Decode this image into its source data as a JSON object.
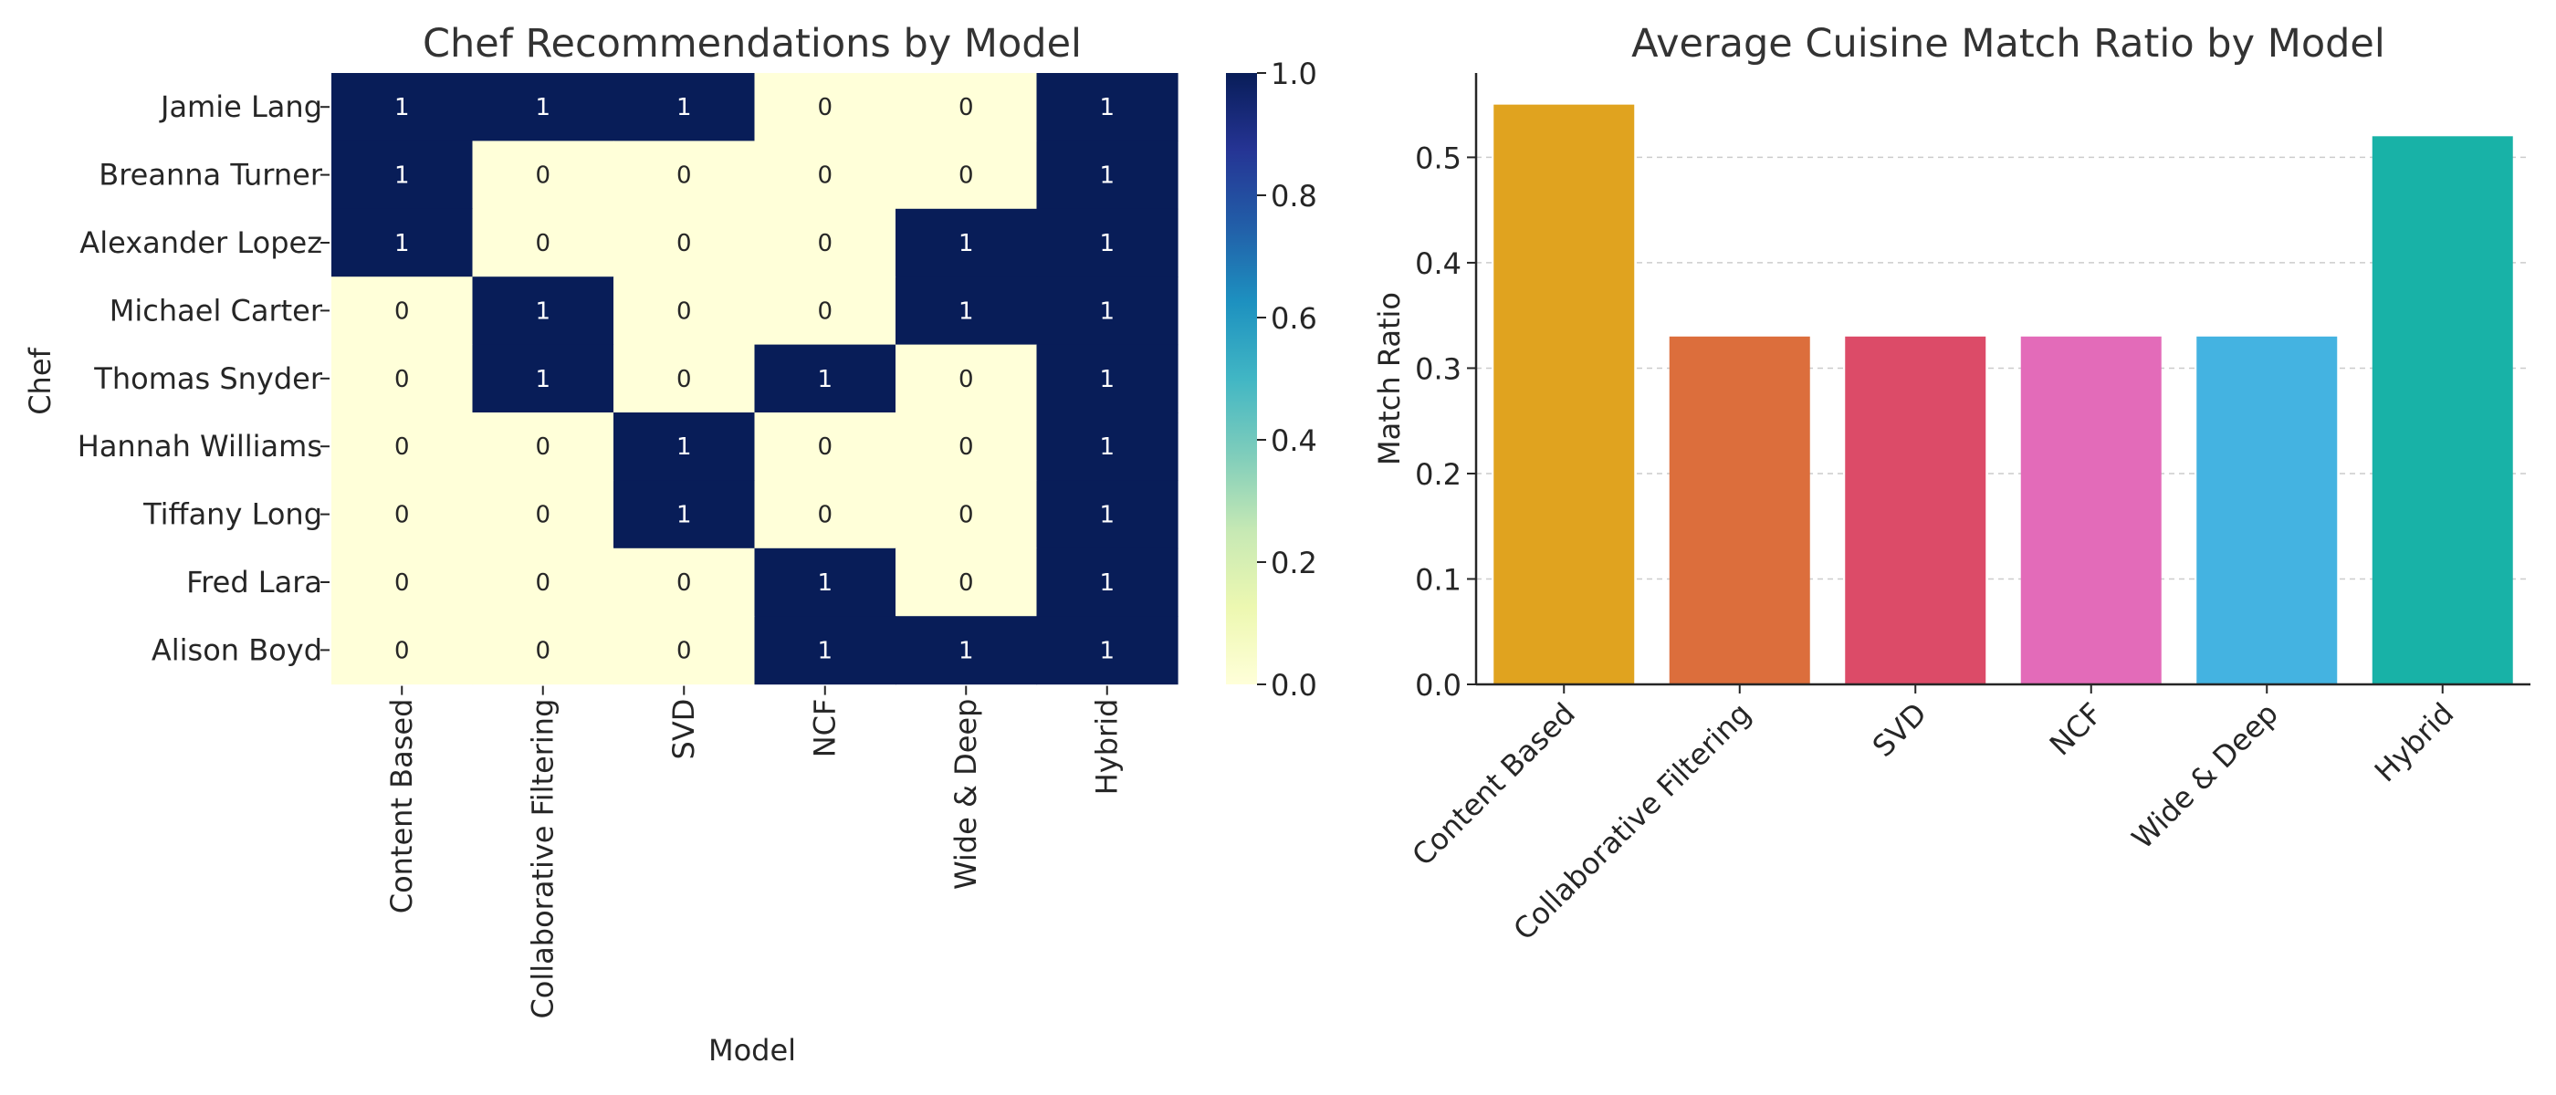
{
  "chart_data": [
    {
      "type": "heatmap",
      "title": "Chef Recommendations by Model",
      "xlabel": "Model",
      "ylabel": "Chef",
      "x_categories": [
        "Content Based",
        "Collaborative Filtering",
        "SVD",
        "NCF",
        "Wide & Deep",
        "Hybrid"
      ],
      "y_categories": [
        "Jamie Lang",
        "Breanna Turner",
        "Alexander Lopez",
        "Michael Carter",
        "Thomas Snyder",
        "Hannah Williams",
        "Tiffany Long",
        "Fred Lara",
        "Alison Boyd"
      ],
      "values": [
        [
          1,
          1,
          1,
          0,
          0,
          1
        ],
        [
          1,
          0,
          0,
          0,
          0,
          1
        ],
        [
          1,
          0,
          0,
          0,
          1,
          1
        ],
        [
          0,
          1,
          0,
          0,
          1,
          1
        ],
        [
          0,
          1,
          0,
          1,
          0,
          1
        ],
        [
          0,
          0,
          1,
          0,
          0,
          1
        ],
        [
          0,
          0,
          1,
          0,
          0,
          1
        ],
        [
          0,
          0,
          0,
          1,
          0,
          1
        ],
        [
          0,
          0,
          0,
          1,
          1,
          1
        ]
      ],
      "annotations": true,
      "colormap": "YlGnBu",
      "colorbar": {
        "range": [
          0,
          1
        ],
        "tick_values": [
          0.0,
          0.2,
          0.4,
          0.6,
          0.8,
          1.0
        ],
        "tick_labels": [
          "0.0",
          "0.2",
          "0.4",
          "0.6",
          "0.8",
          "1.0"
        ]
      },
      "colors": {
        "low": "#ffffd9",
        "high": "#081d58",
        "text_on_low": "#262626",
        "text_on_high": "#ffffff"
      }
    },
    {
      "type": "bar",
      "title": "Average Cuisine Match Ratio by Model",
      "xlabel": "",
      "ylabel": "Match Ratio",
      "categories": [
        "Content Based",
        "Collaborative Filtering",
        "SVD",
        "NCF",
        "Wide & Deep",
        "Hybrid"
      ],
      "values": [
        0.55,
        0.33,
        0.33,
        0.33,
        0.33,
        0.52
      ],
      "colors": [
        "#e0a31f",
        "#dc6e3c",
        "#dc4b68",
        "#e36bb9",
        "#44b3e1",
        "#18b2a7"
      ],
      "ylim": [
        0,
        0.58
      ],
      "y_tick_values": [
        0.0,
        0.1,
        0.2,
        0.3,
        0.4,
        0.5
      ],
      "y_tick_labels": [
        "0.0",
        "0.1",
        "0.2",
        "0.3",
        "0.4",
        "0.5"
      ],
      "grid": true,
      "x_tick_rotation": 45
    }
  ]
}
